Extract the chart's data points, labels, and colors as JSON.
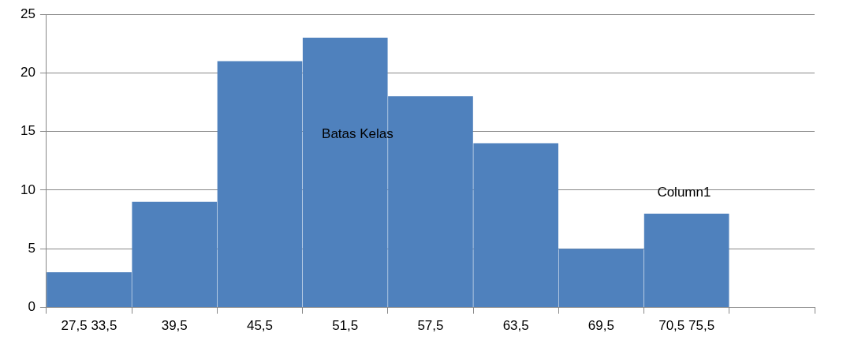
{
  "chart_data": {
    "type": "bar",
    "categories": [
      "27,5 33,5",
      "39,5",
      "45,5",
      "51,5",
      "57,5",
      "63,5",
      "69,5",
      "70,5 75,5",
      null
    ],
    "values": [
      3,
      9,
      21,
      23,
      18,
      14,
      5,
      8,
      null
    ],
    "color": "#4f81bd",
    "ylim": [
      0,
      25
    ],
    "yticks": [
      0,
      5,
      10,
      15,
      20,
      25
    ],
    "grid": "y",
    "annotations": [
      "Batas Kelas",
      "Column1"
    ]
  }
}
